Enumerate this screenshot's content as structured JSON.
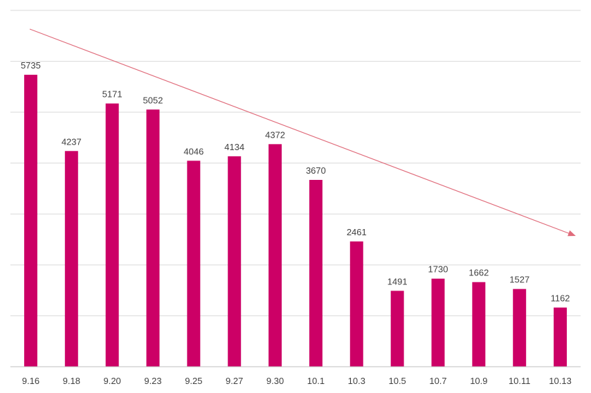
{
  "chart_data": {
    "type": "bar",
    "categories": [
      "9.16",
      "9.18",
      "9.20",
      "9.23",
      "9.25",
      "9.27",
      "9.30",
      "10.1",
      "10.3",
      "10.5",
      "10.7",
      "10.9",
      "10.11",
      "10.13"
    ],
    "values": [
      5735,
      4237,
      5171,
      5052,
      4046,
      4134,
      4372,
      3670,
      2461,
      1491,
      1730,
      1662,
      1527,
      1162
    ],
    "ylim": [
      0,
      7000
    ],
    "grid": true,
    "color": "#cc0066",
    "trend": {
      "direction": "downward",
      "color": "#e06c7b"
    }
  }
}
